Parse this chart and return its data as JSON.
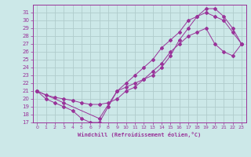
{
  "xlabel": "Windchill (Refroidissement éolien,°C)",
  "bg_color": "#cce8e8",
  "grid_color": "#aaaaaa",
  "line_color": "#993399",
  "xlim": [
    -0.5,
    23.5
  ],
  "ylim": [
    17,
    32
  ],
  "xticks": [
    0,
    1,
    2,
    3,
    4,
    5,
    6,
    7,
    8,
    9,
    10,
    11,
    12,
    13,
    14,
    15,
    16,
    17,
    18,
    19,
    20,
    21,
    22,
    23
  ],
  "yticks": [
    17,
    18,
    19,
    20,
    21,
    22,
    23,
    24,
    25,
    26,
    27,
    28,
    29,
    30,
    31
  ],
  "curve1_x": [
    0,
    1,
    2,
    3,
    4,
    5,
    6,
    7,
    8,
    9,
    10,
    11,
    12,
    13,
    14,
    15,
    16,
    17,
    18,
    19,
    20,
    21,
    22,
    23
  ],
  "curve1_y": [
    21,
    20,
    19.5,
    19,
    18.5,
    17.5,
    17,
    17,
    19,
    21,
    21.5,
    22,
    22.5,
    23,
    24,
    25.5,
    27.5,
    29,
    30.5,
    31.5,
    31.5,
    30.5,
    29,
    27
  ],
  "curve2_x": [
    0,
    1,
    2,
    3,
    4,
    5,
    6,
    7,
    8,
    9,
    10,
    11,
    12,
    13,
    14,
    15,
    16,
    17,
    18,
    19,
    20,
    21,
    22,
    23
  ],
  "curve2_y": [
    21,
    20.5,
    20.2,
    20,
    19.8,
    19.5,
    19.3,
    19.3,
    19.5,
    20,
    21,
    21.5,
    22.5,
    23.5,
    24.5,
    26,
    27,
    28,
    28.5,
    29,
    27,
    26,
    25.5,
    27
  ],
  "curve3_x": [
    0,
    3,
    7,
    9,
    10,
    11,
    12,
    13,
    14,
    15,
    16,
    17,
    18,
    19,
    20,
    21,
    22,
    23
  ],
  "curve3_y": [
    21,
    19.5,
    17.5,
    21,
    22,
    23,
    24,
    25,
    26.5,
    27.5,
    28.5,
    30,
    30.5,
    31,
    30.5,
    30,
    28.5,
    27
  ]
}
